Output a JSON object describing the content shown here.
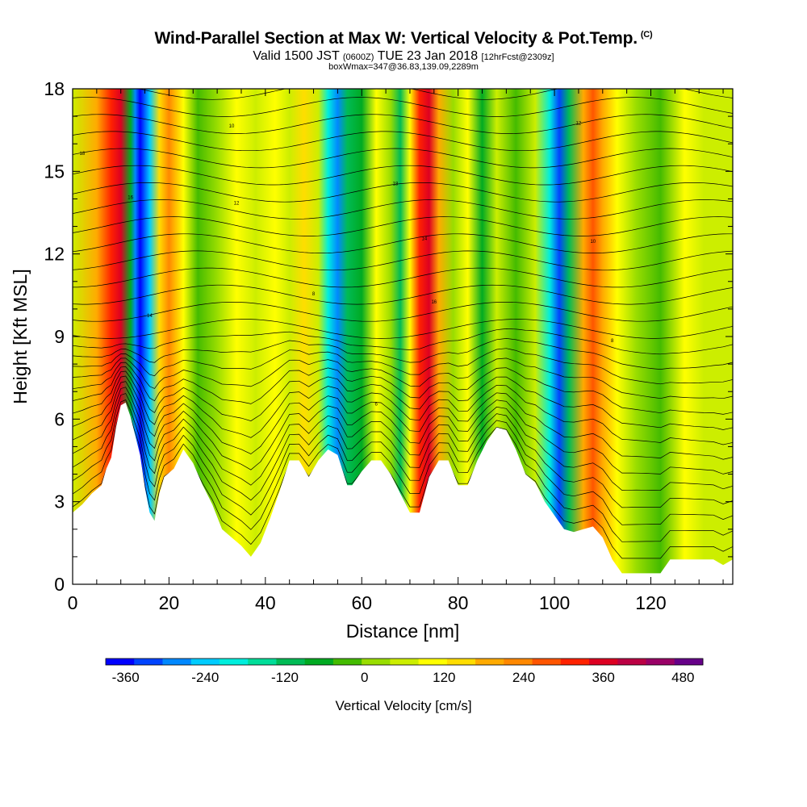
{
  "header": {
    "title": "Wind-Parallel Section at Max W: Vertical Velocity & Pot.Temp.",
    "copyright": "(C)",
    "subtitle_valid": "Valid 1500 JST",
    "subtitle_utc": "(0600Z)",
    "subtitle_date": "TUE 23 Jan 2018",
    "subtitle_forecast": "[12hrFcst@2309z]",
    "subline": "boxWmax=347@36.83,139.09,2289m"
  },
  "chart_data": {
    "type": "heatmap",
    "title": "Wind-Parallel Section at Max W: Vertical Velocity & Pot.Temp.",
    "xlabel": "Distance [nm]",
    "ylabel": "Height [Kft MSL]",
    "xlim": [
      0,
      137
    ],
    "ylim": [
      0,
      18
    ],
    "xticks": [
      0,
      20,
      40,
      60,
      80,
      100,
      120
    ],
    "yticks": [
      0,
      3,
      6,
      9,
      12,
      15,
      18
    ],
    "colorbar": {
      "label": "Vertical Velocity [cm/s]",
      "ticks": [
        -360,
        -240,
        -120,
        0,
        120,
        240,
        360,
        480
      ],
      "range": [
        -390,
        510
      ],
      "colors": [
        "#0000ff",
        "#0044ff",
        "#0088ff",
        "#00ccff",
        "#00eedd",
        "#00dd99",
        "#00bb55",
        "#00aa22",
        "#44bb00",
        "#99dd00",
        "#ccee00",
        "#ffff00",
        "#ffdd00",
        "#ffaa00",
        "#ff8800",
        "#ff5500",
        "#ff2200",
        "#dd0022",
        "#bb0044",
        "#990066",
        "#660088"
      ]
    },
    "terrain_kft": [
      [
        0,
        2.6
      ],
      [
        2,
        2.9
      ],
      [
        4,
        3.3
      ],
      [
        6,
        3.6
      ],
      [
        7,
        4.2
      ],
      [
        8,
        4.6
      ],
      [
        9,
        5.7
      ],
      [
        10,
        6.5
      ],
      [
        11,
        6.6
      ],
      [
        12,
        6.1
      ],
      [
        13,
        5.4
      ],
      [
        14,
        4.7
      ],
      [
        15,
        3.5
      ],
      [
        16,
        2.6
      ],
      [
        17,
        2.3
      ],
      [
        18,
        3.3
      ],
      [
        19,
        3.9
      ],
      [
        21,
        4.2
      ],
      [
        23,
        4.9
      ],
      [
        25,
        4.4
      ],
      [
        27,
        3.6
      ],
      [
        29,
        2.9
      ],
      [
        31,
        2.0
      ],
      [
        33,
        1.7
      ],
      [
        35,
        1.4
      ],
      [
        37,
        1.0
      ],
      [
        39,
        1.5
      ],
      [
        41,
        2.4
      ],
      [
        43,
        3.4
      ],
      [
        45,
        4.5
      ],
      [
        47,
        4.5
      ],
      [
        49,
        3.9
      ],
      [
        51,
        4.5
      ],
      [
        53,
        4.9
      ],
      [
        55,
        4.7
      ],
      [
        57,
        3.6
      ],
      [
        58,
        3.6
      ],
      [
        60,
        4.1
      ],
      [
        62,
        4.5
      ],
      [
        64,
        4.5
      ],
      [
        66,
        4.0
      ],
      [
        68,
        3.3
      ],
      [
        70,
        2.6
      ],
      [
        72,
        2.6
      ],
      [
        74,
        3.9
      ],
      [
        76,
        4.5
      ],
      [
        78,
        4.5
      ],
      [
        80,
        3.6
      ],
      [
        82,
        3.6
      ],
      [
        84,
        4.5
      ],
      [
        86,
        5.2
      ],
      [
        88,
        5.7
      ],
      [
        90,
        5.6
      ],
      [
        92,
        4.9
      ],
      [
        94,
        4.0
      ],
      [
        96,
        3.7
      ],
      [
        98,
        3.0
      ],
      [
        100,
        2.5
      ],
      [
        102,
        2.0
      ],
      [
        104,
        1.9
      ],
      [
        106,
        2.0
      ],
      [
        108,
        2.1
      ],
      [
        110,
        1.7
      ],
      [
        112,
        0.9
      ],
      [
        114,
        0.4
      ],
      [
        116,
        0.4
      ],
      [
        118,
        0.4
      ],
      [
        120,
        0.4
      ],
      [
        122,
        0.4
      ],
      [
        124,
        0.9
      ],
      [
        126,
        0.9
      ],
      [
        128,
        0.9
      ],
      [
        130,
        0.9
      ],
      [
        133,
        0.9
      ],
      [
        135,
        0.7
      ],
      [
        137,
        0.9
      ]
    ],
    "vertical_velocity_columns": [
      [
        0,
        70
      ],
      [
        5,
        190
      ],
      [
        8,
        300
      ],
      [
        10,
        380
      ],
      [
        12,
        -80
      ],
      [
        13,
        -300
      ],
      [
        14,
        -380
      ],
      [
        16,
        -220
      ],
      [
        18,
        150
      ],
      [
        20,
        250
      ],
      [
        23,
        120
      ],
      [
        26,
        -30
      ],
      [
        30,
        20
      ],
      [
        34,
        100
      ],
      [
        38,
        40
      ],
      [
        42,
        120
      ],
      [
        45,
        40
      ],
      [
        48,
        150
      ],
      [
        51,
        50
      ],
      [
        53,
        -200
      ],
      [
        55,
        -300
      ],
      [
        57,
        -120
      ],
      [
        60,
        -60
      ],
      [
        63,
        100
      ],
      [
        66,
        20
      ],
      [
        68,
        -100
      ],
      [
        70,
        120
      ],
      [
        72,
        300
      ],
      [
        74,
        380
      ],
      [
        76,
        190
      ],
      [
        79,
        20
      ],
      [
        82,
        120
      ],
      [
        85,
        -60
      ],
      [
        88,
        40
      ],
      [
        92,
        -40
      ],
      [
        96,
        60
      ],
      [
        99,
        -200
      ],
      [
        101,
        -330
      ],
      [
        103,
        -120
      ],
      [
        106,
        200
      ],
      [
        108,
        260
      ],
      [
        110,
        190
      ],
      [
        113,
        120
      ],
      [
        117,
        30
      ],
      [
        122,
        -30
      ],
      [
        127,
        100
      ],
      [
        131,
        40
      ],
      [
        137,
        70
      ]
    ],
    "theta_contour_labels": [
      "18",
      "16",
      "14",
      "12",
      "10",
      "8",
      "6"
    ]
  }
}
